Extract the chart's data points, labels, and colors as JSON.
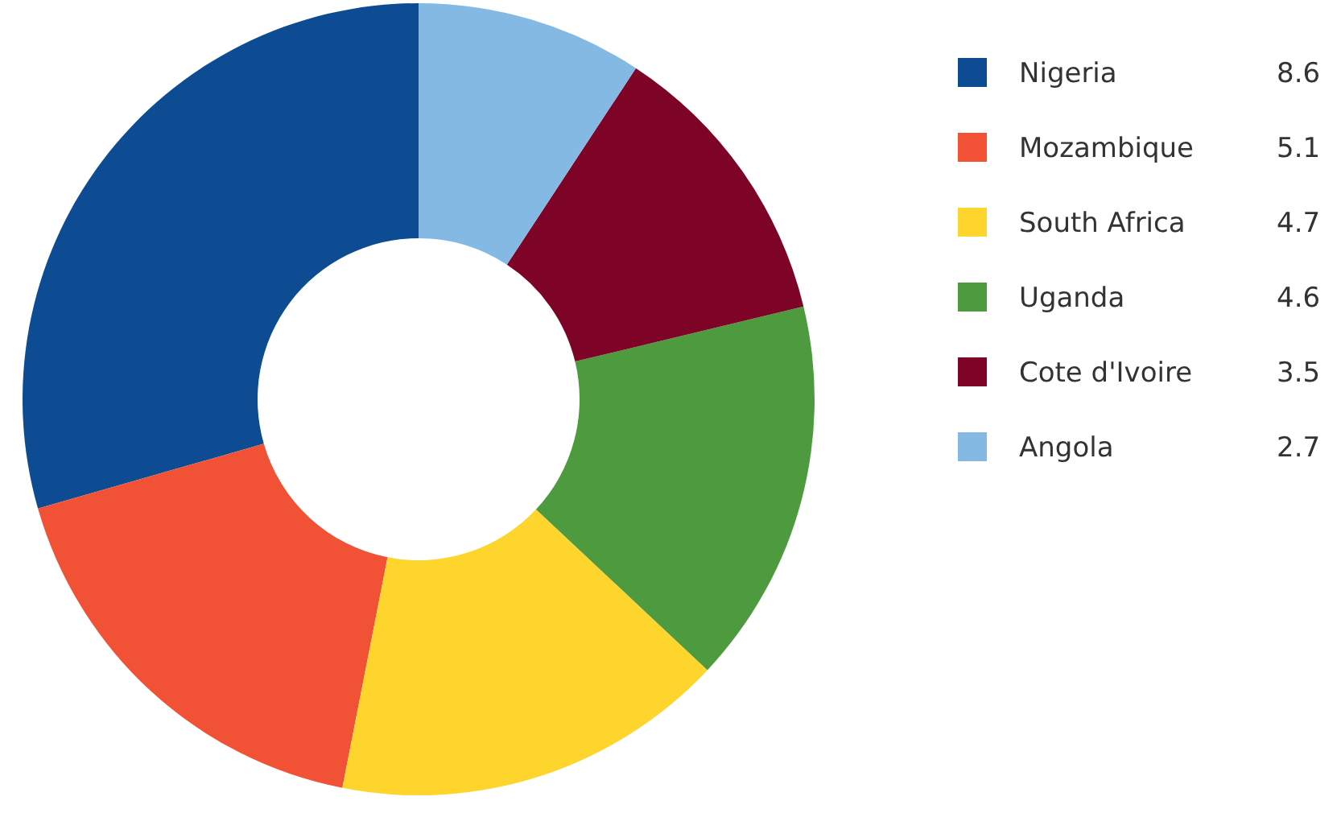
{
  "chart_data": {
    "type": "donut",
    "categories": [
      "Nigeria",
      "Mozambique",
      "South Africa",
      "Uganda",
      "Cote d'Ivoire",
      "Angola"
    ],
    "values": [
      8.6,
      5.1,
      4.7,
      4.6,
      3.5,
      2.7
    ],
    "colors": [
      "#0d4c92",
      "#f15235",
      "#fdd52c",
      "#4e9a3e",
      "#7e0427",
      "#84b9e4"
    ],
    "legend": "right",
    "data_labels": true
  }
}
